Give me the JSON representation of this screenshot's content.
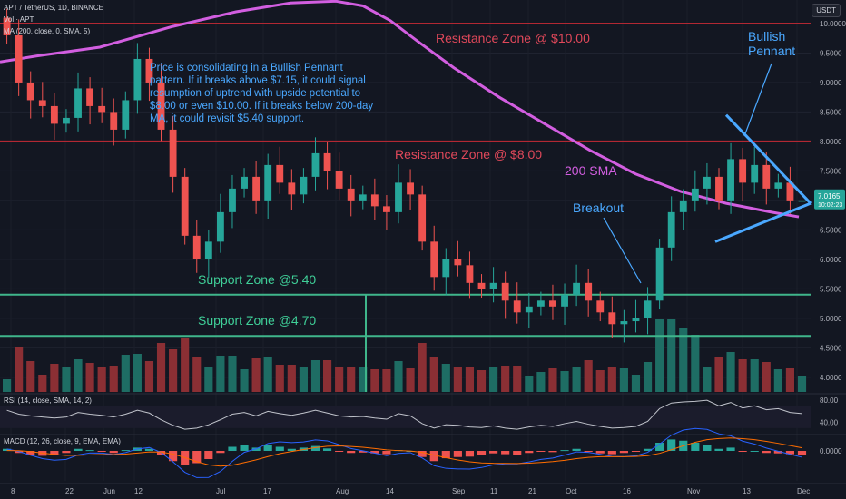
{
  "header": {
    "symbol_line": "APT / TetherUS, 1D, BINANCE",
    "vol_line": "Vol · APT",
    "ma_line": "MA (200, close, 0, SMA, 5)",
    "currency": "USDT"
  },
  "annotations": {
    "note": "Price is consolidating in a Bullish Pennant pattern. If it breaks above $7.15, it could signal resumption of uptrend with upside potential to $8.00 or even $10.00. If it breaks below 200-day MA, it could revisit $5.40 support.",
    "resistance_10": "Resistance Zone @ $10.00",
    "resistance_8": "Resistance Zone @ $8.00",
    "support_540": "Support Zone @5.40",
    "support_470": "Support Zone @4.70",
    "sma_label": "200 SMA",
    "breakout": "Breakout",
    "pennant_line1": "Bullish",
    "pennant_line2": "Pennant"
  },
  "colors": {
    "background": "#131722",
    "up": "#26a69a",
    "down": "#ef5350",
    "resistance": "#b22833",
    "support": "#3fb68b",
    "sma": "#d25ee0",
    "annotation_blue": "#4aa8ff",
    "rsi": "#c0c3cb",
    "macd": "#2962ff",
    "signal": "#ff6d00"
  },
  "price_badge": {
    "price": "7.0165",
    "countdown": "10:02:23"
  },
  "panes": {
    "rsi_label": "RSI (14, close, SMA, 14, 2)",
    "rsi_ticks": [
      "80.00",
      "40.00"
    ],
    "macd_label": "MACD (12, 26, close, 9, EMA, EMA)",
    "macd_tick": "0.0000"
  },
  "chart_data": {
    "type": "candlestick",
    "ylim": [
      3.75,
      10.4
    ],
    "y_ticks": [
      4.0,
      4.5,
      5.0,
      5.5,
      6.0,
      6.5,
      7.0,
      7.5,
      8.0,
      8.5,
      9.0,
      9.5,
      10.0
    ],
    "x_ticks": [
      "8",
      "22",
      "Jun",
      "12",
      "Jul",
      "17",
      "Aug",
      "14",
      "Sep",
      "11",
      "21",
      "Oct",
      "16",
      "Nov",
      "13",
      "Dec"
    ],
    "horizontal_levels": {
      "resistance": [
        10.0,
        8.0
      ],
      "support": [
        5.4,
        4.7
      ]
    },
    "last_price": 7.0165,
    "sma200_path": [
      [
        0,
        9.35
      ],
      [
        40,
        9.45
      ],
      [
        110,
        9.6
      ],
      [
        190,
        9.95
      ],
      [
        260,
        10.2
      ],
      [
        320,
        10.35
      ],
      [
        370,
        10.38
      ],
      [
        400,
        10.3
      ],
      [
        430,
        10.05
      ],
      [
        460,
        9.7
      ],
      [
        500,
        9.25
      ],
      [
        550,
        8.75
      ],
      [
        600,
        8.3
      ],
      [
        650,
        7.85
      ],
      [
        700,
        7.45
      ],
      [
        750,
        7.15
      ],
      [
        800,
        6.95
      ],
      [
        850,
        6.8
      ],
      [
        880,
        6.72
      ]
    ],
    "closes": [
      9.8,
      9.0,
      8.7,
      8.6,
      8.3,
      8.4,
      8.9,
      8.6,
      8.5,
      8.2,
      8.7,
      9.4,
      9.0,
      8.2,
      7.4,
      6.4,
      6.0,
      6.3,
      6.8,
      7.2,
      7.4,
      7.0,
      7.6,
      7.3,
      7.1,
      7.4,
      7.8,
      7.5,
      7.2,
      7.0,
      7.1,
      6.9,
      6.8,
      7.3,
      7.1,
      6.3,
      5.7,
      6.0,
      5.9,
      5.6,
      5.5,
      5.6,
      5.3,
      5.1,
      5.2,
      5.3,
      5.2,
      5.4,
      5.6,
      5.3,
      5.1,
      4.9,
      4.95,
      5.0,
      5.3,
      6.2,
      6.8,
      7.0,
      7.2,
      7.4,
      7.0,
      7.7,
      7.3,
      7.6,
      7.2,
      7.3,
      7.0,
      7.0
    ],
    "rsi": [
      62,
      55,
      52,
      50,
      48,
      50,
      58,
      55,
      53,
      50,
      55,
      62,
      57,
      45,
      35,
      28,
      30,
      36,
      45,
      55,
      58,
      52,
      60,
      56,
      53,
      57,
      62,
      57,
      52,
      50,
      51,
      48,
      46,
      56,
      52,
      38,
      30,
      36,
      35,
      32,
      31,
      34,
      30,
      28,
      32,
      35,
      33,
      38,
      42,
      37,
      33,
      30,
      31,
      33,
      42,
      65,
      75,
      77,
      78,
      80,
      70,
      76,
      66,
      70,
      63,
      65,
      58,
      56
    ],
    "macd_hist": [
      0.05,
      -0.05,
      -0.1,
      -0.12,
      -0.1,
      -0.05,
      0.05,
      0.02,
      -0.02,
      -0.05,
      0.02,
      0.08,
      0.05,
      -0.1,
      -0.25,
      -0.35,
      -0.3,
      -0.2,
      -0.05,
      0.1,
      0.15,
      0.08,
      0.15,
      0.1,
      0.05,
      0.08,
      0.12,
      0.06,
      -0.02,
      -0.05,
      -0.04,
      -0.06,
      -0.08,
      0.02,
      0.0,
      -0.15,
      -0.25,
      -0.18,
      -0.15,
      -0.14,
      -0.1,
      -0.06,
      -0.08,
      -0.1,
      -0.05,
      -0.02,
      -0.03,
      0.02,
      0.05,
      -0.02,
      -0.06,
      -0.08,
      -0.05,
      -0.02,
      0.05,
      0.2,
      0.28,
      0.25,
      0.2,
      0.15,
      0.05,
      0.08,
      -0.02,
      0.0,
      -0.05,
      -0.06,
      -0.08,
      -0.1
    ]
  }
}
